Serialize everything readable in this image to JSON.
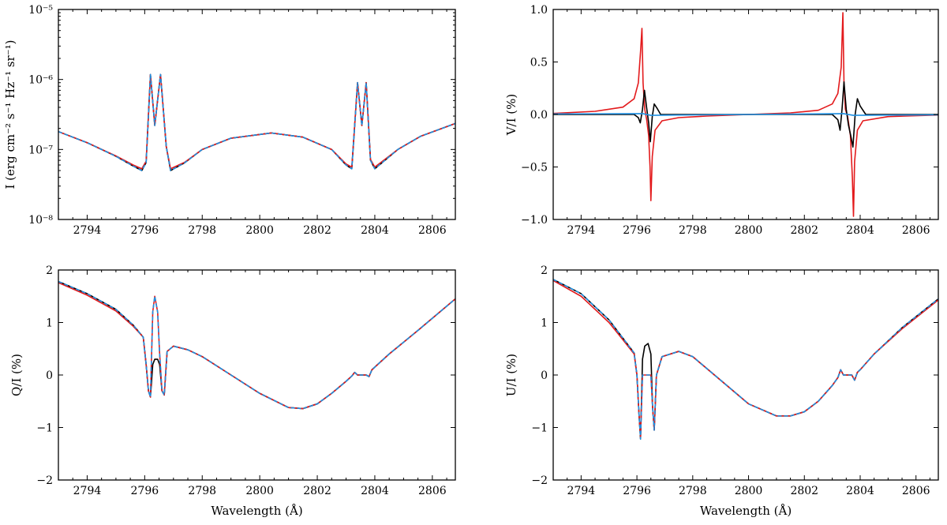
{
  "colors": {
    "black": "#000000",
    "red": "#e31a1c",
    "blue": "#1f8fe0"
  },
  "chart_data": [
    {
      "type": "line",
      "id": "intensity",
      "ylabel": "I (erg cm⁻² s⁻¹ Hz⁻¹ sr⁻¹)",
      "yscale": "log",
      "xlim": [
        2793,
        2806.8
      ],
      "ylim": [
        1e-08,
        1e-05
      ],
      "x_ticks": [
        2794,
        2796,
        2798,
        2800,
        2802,
        2804,
        2806
      ],
      "x_tick_labels": [
        "2794",
        "2796",
        "2798",
        "2800",
        "2802",
        "2804",
        "2806"
      ],
      "y_ticks": [
        1e-08,
        1e-07,
        1e-06,
        1e-05
      ],
      "y_tick_labels": [
        "10⁻⁸",
        "10⁻⁷",
        "10⁻⁶",
        "10⁻⁵"
      ],
      "series": [
        {
          "color": "#000000",
          "dashed": false,
          "x": [
            2793.0,
            2794.0,
            2795.0,
            2795.6,
            2795.9,
            2796.05,
            2796.2,
            2796.35,
            2796.55,
            2796.75,
            2796.9,
            2797.4,
            2798.0,
            2799.0,
            2800.4,
            2801.5,
            2802.5,
            2803.0,
            2803.2,
            2803.4,
            2803.55,
            2803.7,
            2803.85,
            2804.0,
            2804.8,
            2805.6,
            2806.8
          ],
          "y": [
            1.8e-07,
            1.25e-07,
            8e-08,
            5.8e-08,
            5e-08,
            6.5e-08,
            1.18e-06,
            2.2e-07,
            1.18e-06,
            1.1e-07,
            5e-08,
            6.5e-08,
            1e-07,
            1.45e-07,
            1.72e-07,
            1.5e-07,
            1e-07,
            6e-08,
            5.3e-08,
            9e-07,
            2.2e-07,
            9e-07,
            7e-08,
            5.3e-08,
            1e-07,
            1.55e-07,
            2.35e-07
          ]
        },
        {
          "color": "#e31a1c",
          "dashed": false,
          "x": [
            2793.0,
            2794.0,
            2795.0,
            2795.6,
            2795.9,
            2796.05,
            2796.2,
            2796.35,
            2796.55,
            2796.75,
            2796.9,
            2797.4,
            2798.0,
            2799.0,
            2800.4,
            2801.5,
            2802.5,
            2803.0,
            2803.2,
            2803.4,
            2803.55,
            2803.7,
            2803.85,
            2804.0,
            2804.8,
            2805.6,
            2806.8
          ],
          "y": [
            1.8e-07,
            1.25e-07,
            8.1e-08,
            6e-08,
            5.3e-08,
            6.8e-08,
            1.18e-06,
            2.2e-07,
            1.18e-06,
            1.1e-07,
            5.3e-08,
            6.6e-08,
            1e-07,
            1.45e-07,
            1.72e-07,
            1.5e-07,
            1e-07,
            6.2e-08,
            5.6e-08,
            9e-07,
            2.2e-07,
            9e-07,
            7.2e-08,
            5.6e-08,
            1e-07,
            1.55e-07,
            2.35e-07
          ]
        },
        {
          "color": "#1f8fe0",
          "dashed": true,
          "x": [
            2793.0,
            2794.0,
            2795.0,
            2795.6,
            2795.9,
            2796.05,
            2796.2,
            2796.35,
            2796.55,
            2796.75,
            2796.9,
            2797.4,
            2798.0,
            2799.0,
            2800.4,
            2801.5,
            2802.5,
            2803.0,
            2803.2,
            2803.4,
            2803.55,
            2803.7,
            2803.85,
            2804.0,
            2804.8,
            2805.6,
            2806.8
          ],
          "y": [
            1.8e-07,
            1.25e-07,
            8e-08,
            5.8e-08,
            5e-08,
            6.5e-08,
            1.18e-06,
            2.2e-07,
            1.18e-06,
            1.1e-07,
            5e-08,
            6.5e-08,
            1e-07,
            1.45e-07,
            1.72e-07,
            1.5e-07,
            1e-07,
            6e-08,
            5.3e-08,
            9e-07,
            2.2e-07,
            9e-07,
            7e-08,
            5.3e-08,
            1e-07,
            1.55e-07,
            2.35e-07
          ]
        }
      ]
    },
    {
      "type": "line",
      "id": "stokes-v",
      "ylabel": "V/I (%)",
      "yscale": "linear",
      "xlim": [
        2793,
        2806.8
      ],
      "ylim": [
        -1.0,
        1.0
      ],
      "x_ticks": [
        2794,
        2796,
        2798,
        2800,
        2802,
        2804,
        2806
      ],
      "x_tick_labels": [
        "2794",
        "2796",
        "2798",
        "2800",
        "2802",
        "2804",
        "2806"
      ],
      "y_ticks": [
        -1.0,
        -0.5,
        0.0,
        0.5,
        1.0
      ],
      "y_tick_labels": [
        "−1.0",
        "−0.5",
        "0.0",
        "0.5",
        "1.0"
      ],
      "series": [
        {
          "color": "#e31a1c",
          "dashed": false,
          "x": [
            2793.0,
            2794.5,
            2795.5,
            2795.9,
            2796.05,
            2796.13,
            2796.18,
            2796.22,
            2796.28,
            2796.35,
            2796.42,
            2796.47,
            2796.5,
            2796.55,
            2796.65,
            2796.9,
            2797.5,
            2798.5,
            2800.0,
            2801.5,
            2802.5,
            2803.0,
            2803.2,
            2803.32,
            2803.38,
            2803.42,
            2803.47,
            2803.55,
            2803.65,
            2803.72,
            2803.76,
            2803.8,
            2803.9,
            2804.1,
            2805.0,
            2806.8
          ],
          "y": [
            0.01,
            0.03,
            0.07,
            0.15,
            0.3,
            0.6,
            0.82,
            0.3,
            0.05,
            -0.05,
            -0.2,
            -0.5,
            -0.82,
            -0.4,
            -0.15,
            -0.06,
            -0.03,
            -0.015,
            0.0,
            0.015,
            0.04,
            0.1,
            0.2,
            0.45,
            0.97,
            0.3,
            0.05,
            -0.02,
            -0.2,
            -0.6,
            -0.97,
            -0.45,
            -0.15,
            -0.06,
            -0.02,
            -0.005
          ]
        },
        {
          "color": "#000000",
          "dashed": false,
          "x": [
            2793.0,
            2795.5,
            2795.9,
            2796.05,
            2796.12,
            2796.2,
            2796.27,
            2796.35,
            2796.42,
            2796.48,
            2796.55,
            2796.62,
            2796.72,
            2796.85,
            2797.1,
            2800.0,
            2803.0,
            2803.2,
            2803.28,
            2803.35,
            2803.42,
            2803.5,
            2803.58,
            2803.66,
            2803.74,
            2803.82,
            2803.9,
            2804.0,
            2804.2,
            2806.8
          ],
          "y": [
            0.0,
            0.0,
            0.0,
            -0.03,
            -0.08,
            0.05,
            0.23,
            0.06,
            -0.08,
            -0.26,
            -0.02,
            0.1,
            0.06,
            0.0,
            0.0,
            0.0,
            0.0,
            -0.05,
            -0.15,
            0.05,
            0.31,
            0.05,
            -0.1,
            -0.2,
            -0.31,
            0.0,
            0.15,
            0.08,
            0.0,
            0.0
          ]
        },
        {
          "color": "#1f8fe0",
          "dashed": false,
          "x": [
            2793.0,
            2796.2,
            2796.5,
            2800.0,
            2803.4,
            2803.75,
            2806.8
          ],
          "y": [
            0.005,
            0.008,
            -0.008,
            0.0,
            0.008,
            -0.008,
            -0.003
          ]
        }
      ]
    },
    {
      "type": "line",
      "id": "stokes-q",
      "ylabel": "Q/I (%)",
      "xlabel": "Wavelength (Å)",
      "yscale": "linear",
      "xlim": [
        2793,
        2806.8
      ],
      "ylim": [
        -2,
        2
      ],
      "x_ticks": [
        2794,
        2796,
        2798,
        2800,
        2802,
        2804,
        2806
      ],
      "x_tick_labels": [
        "2794",
        "2796",
        "2798",
        "2800",
        "2802",
        "2804",
        "2806"
      ],
      "y_ticks": [
        -2,
        -1,
        0,
        1,
        2
      ],
      "y_tick_labels": [
        "−2",
        "−1",
        "0",
        "1",
        "2"
      ],
      "series": [
        {
          "color": "#000000",
          "dashed": false,
          "x": [
            2793.0,
            2794.0,
            2795.0,
            2795.6,
            2795.95,
            2796.05,
            2796.13,
            2796.2,
            2796.28,
            2796.35,
            2796.45,
            2796.52,
            2796.6,
            2796.68,
            2796.78,
            2797.0,
            2797.5,
            2798.0,
            2799.0,
            2800.0,
            2801.0,
            2801.5,
            2802.0,
            2802.5,
            2803.0,
            2803.2,
            2803.3,
            2803.4,
            2803.5,
            2803.7,
            2803.8,
            2803.9,
            2804.0,
            2804.5,
            2805.5,
            2806.8
          ],
          "y": [
            1.78,
            1.55,
            1.25,
            0.95,
            0.72,
            0.2,
            -0.3,
            -0.42,
            0.2,
            0.3,
            0.3,
            0.2,
            -0.3,
            -0.38,
            0.45,
            0.55,
            0.48,
            0.35,
            0.0,
            -0.35,
            -0.62,
            -0.64,
            -0.55,
            -0.35,
            -0.12,
            -0.02,
            0.05,
            0.0,
            0.0,
            0.0,
            -0.03,
            0.1,
            0.15,
            0.4,
            0.85,
            1.45
          ]
        },
        {
          "color": "#e31a1c",
          "dashed": false,
          "x": [
            2793.0,
            2794.0,
            2795.0,
            2795.6,
            2795.95,
            2796.05,
            2796.13,
            2796.2,
            2796.28,
            2796.35,
            2796.45,
            2796.52,
            2796.6,
            2796.68,
            2796.78,
            2797.0,
            2797.5,
            2798.0,
            2799.0,
            2800.0,
            2801.0,
            2801.5,
            2802.0,
            2802.5,
            2803.0,
            2803.2,
            2803.3,
            2803.4,
            2803.5,
            2803.7,
            2803.8,
            2803.9,
            2804.0,
            2804.5,
            2805.5,
            2806.8
          ],
          "y": [
            1.76,
            1.52,
            1.22,
            0.93,
            0.72,
            0.2,
            -0.3,
            -0.42,
            1.2,
            1.5,
            1.2,
            0.4,
            -0.3,
            -0.38,
            0.45,
            0.55,
            0.48,
            0.35,
            0.0,
            -0.35,
            -0.62,
            -0.64,
            -0.55,
            -0.35,
            -0.12,
            -0.02,
            0.05,
            0.0,
            0.0,
            0.0,
            -0.03,
            0.1,
            0.15,
            0.4,
            0.85,
            1.45
          ]
        },
        {
          "color": "#1f8fe0",
          "dashed": true,
          "x": [
            2793.0,
            2794.0,
            2795.0,
            2795.6,
            2795.95,
            2796.05,
            2796.13,
            2796.2,
            2796.28,
            2796.35,
            2796.45,
            2796.52,
            2796.6,
            2796.68,
            2796.78,
            2797.0,
            2797.5,
            2798.0,
            2799.0,
            2800.0,
            2801.0,
            2801.5,
            2802.0,
            2802.5,
            2803.0,
            2803.2,
            2803.3,
            2803.4,
            2803.5,
            2803.7,
            2803.8,
            2803.9,
            2804.0,
            2804.5,
            2805.5,
            2806.8
          ],
          "y": [
            1.78,
            1.55,
            1.25,
            0.95,
            0.72,
            0.2,
            -0.3,
            -0.42,
            1.2,
            1.5,
            1.2,
            0.4,
            -0.3,
            -0.38,
            0.45,
            0.55,
            0.48,
            0.35,
            0.0,
            -0.35,
            -0.62,
            -0.64,
            -0.55,
            -0.35,
            -0.12,
            -0.02,
            0.05,
            0.0,
            0.0,
            0.0,
            -0.03,
            0.1,
            0.15,
            0.4,
            0.85,
            1.45
          ]
        }
      ]
    },
    {
      "type": "line",
      "id": "stokes-u",
      "ylabel": "U/I (%)",
      "xlabel": "Wavelength (Å)",
      "yscale": "linear",
      "xlim": [
        2793,
        2806.8
      ],
      "ylim": [
        -2,
        2
      ],
      "x_ticks": [
        2794,
        2796,
        2798,
        2800,
        2802,
        2804,
        2806
      ],
      "x_tick_labels": [
        "2794",
        "2796",
        "2798",
        "2800",
        "2802",
        "2804",
        "2806"
      ],
      "y_ticks": [
        -2,
        -1,
        0,
        1,
        2
      ],
      "y_tick_labels": [
        "−2",
        "−1",
        "0",
        "1",
        "2"
      ],
      "series": [
        {
          "color": "#000000",
          "dashed": false,
          "x": [
            2793.0,
            2794.0,
            2795.0,
            2795.5,
            2795.9,
            2796.0,
            2796.08,
            2796.13,
            2796.2,
            2796.28,
            2796.4,
            2796.5,
            2796.56,
            2796.62,
            2796.7,
            2796.9,
            2797.5,
            2798.0,
            2799.0,
            2800.0,
            2801.0,
            2801.5,
            2802.0,
            2802.5,
            2803.0,
            2803.2,
            2803.3,
            2803.4,
            2803.5,
            2803.7,
            2803.8,
            2803.9,
            2804.0,
            2804.5,
            2805.5,
            2806.8
          ],
          "y": [
            1.82,
            1.55,
            1.05,
            0.7,
            0.42,
            0.0,
            -0.8,
            -1.22,
            0.3,
            0.55,
            0.6,
            0.4,
            -0.6,
            -1.05,
            0.0,
            0.35,
            0.45,
            0.35,
            -0.1,
            -0.55,
            -0.78,
            -0.78,
            -0.7,
            -0.5,
            -0.2,
            -0.05,
            0.1,
            0.0,
            0.0,
            0.0,
            -0.1,
            0.05,
            0.1,
            0.4,
            0.9,
            1.45
          ]
        },
        {
          "color": "#e31a1c",
          "dashed": false,
          "x": [
            2793.0,
            2794.0,
            2795.0,
            2795.5,
            2795.9,
            2796.0,
            2796.08,
            2796.13,
            2796.2,
            2796.28,
            2796.4,
            2796.5,
            2796.56,
            2796.62,
            2796.7,
            2796.9,
            2797.5,
            2798.0,
            2799.0,
            2800.0,
            2801.0,
            2801.5,
            2802.0,
            2802.5,
            2803.0,
            2803.2,
            2803.3,
            2803.4,
            2803.5,
            2803.7,
            2803.8,
            2803.9,
            2804.0,
            2804.5,
            2805.5,
            2806.8
          ],
          "y": [
            1.8,
            1.5,
            1.0,
            0.67,
            0.4,
            0.0,
            -0.8,
            -1.18,
            0.0,
            0.0,
            0.0,
            0.0,
            -0.6,
            -1.05,
            0.0,
            0.35,
            0.45,
            0.35,
            -0.1,
            -0.55,
            -0.78,
            -0.78,
            -0.7,
            -0.5,
            -0.2,
            -0.05,
            0.1,
            0.0,
            0.0,
            0.0,
            -0.1,
            0.05,
            0.1,
            0.4,
            0.88,
            1.43
          ]
        },
        {
          "color": "#1f8fe0",
          "dashed": true,
          "x": [
            2793.0,
            2794.0,
            2795.0,
            2795.5,
            2795.9,
            2796.0,
            2796.08,
            2796.13,
            2796.2,
            2796.28,
            2796.4,
            2796.5,
            2796.56,
            2796.62,
            2796.7,
            2796.9,
            2797.5,
            2798.0,
            2799.0,
            2800.0,
            2801.0,
            2801.5,
            2802.0,
            2802.5,
            2803.0,
            2803.2,
            2803.3,
            2803.4,
            2803.5,
            2803.7,
            2803.8,
            2803.9,
            2804.0,
            2804.5,
            2805.5,
            2806.8
          ],
          "y": [
            1.82,
            1.55,
            1.05,
            0.7,
            0.42,
            0.0,
            -0.8,
            -1.22,
            0.0,
            0.0,
            0.0,
            0.0,
            -0.6,
            -1.05,
            0.0,
            0.35,
            0.45,
            0.35,
            -0.1,
            -0.55,
            -0.78,
            -0.78,
            -0.7,
            -0.5,
            -0.2,
            -0.05,
            0.1,
            0.0,
            0.0,
            0.0,
            -0.1,
            0.05,
            0.1,
            0.4,
            0.9,
            1.45
          ]
        }
      ]
    }
  ]
}
